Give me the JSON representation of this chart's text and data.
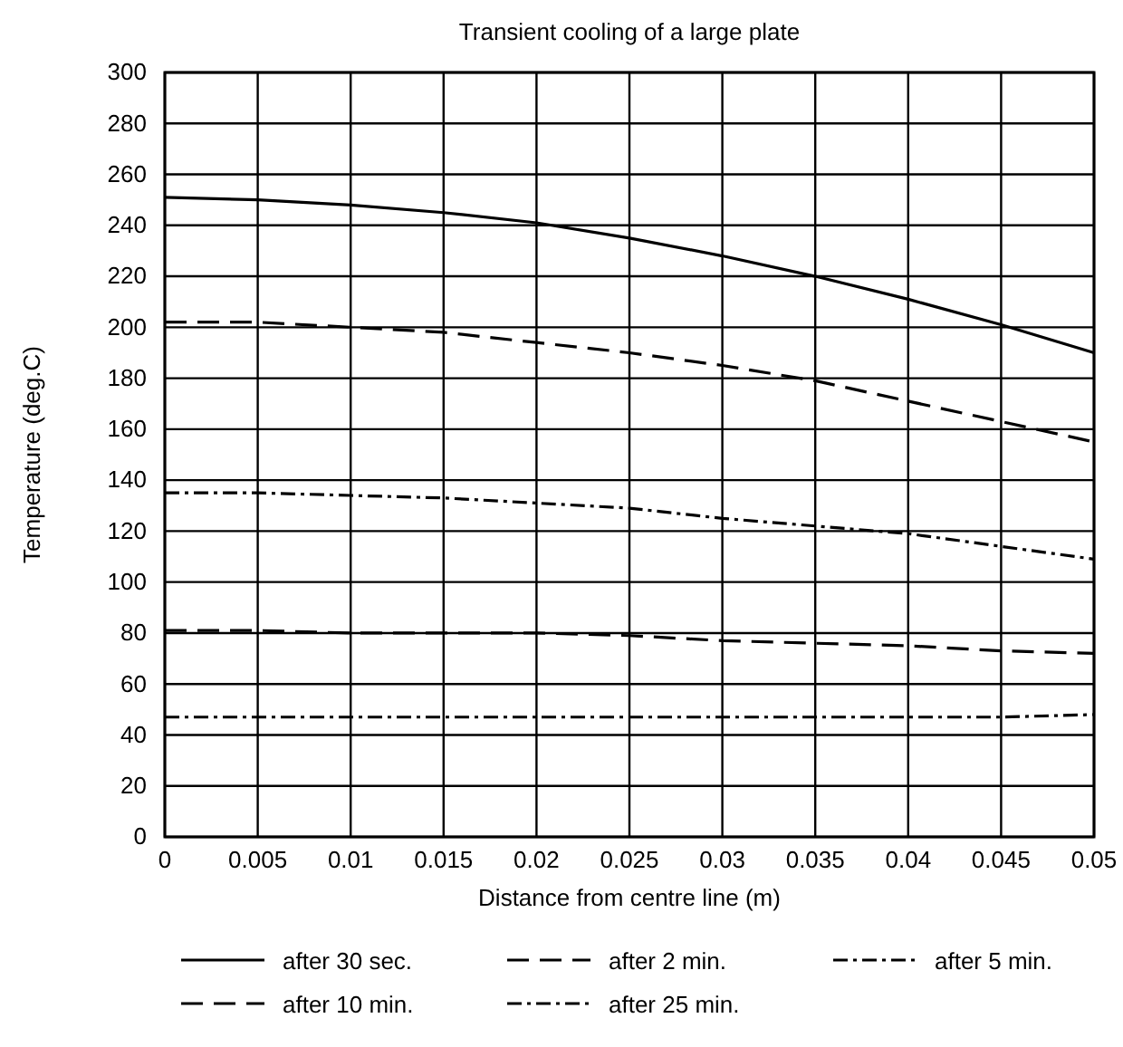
{
  "chart_data": {
    "type": "line",
    "title": "Transient cooling of a large plate",
    "xlabel": "Distance from centre line (m)",
    "ylabel": "Temperature (deg.C)",
    "x": [
      0,
      0.005,
      0.01,
      0.015,
      0.02,
      0.025,
      0.03,
      0.035,
      0.04,
      0.045,
      0.05
    ],
    "series": [
      {
        "name": "after 30 sec.",
        "color": "#000000",
        "line_style": "solid",
        "values": [
          251,
          250,
          248,
          245,
          241,
          235,
          228,
          220,
          211,
          201,
          190
        ]
      },
      {
        "name": "after 2 min.",
        "color": "#000000",
        "line_style": "dashed",
        "values": [
          202,
          202,
          200,
          198,
          194,
          190,
          185,
          179,
          171,
          163,
          155
        ]
      },
      {
        "name": "after 5 min.",
        "color": "#000000",
        "line_style": "dotted",
        "values": [
          135,
          135,
          134,
          133,
          131,
          129,
          125,
          122,
          119,
          114,
          109
        ]
      },
      {
        "name": "after 10 min.",
        "color": "#000000",
        "line_style": "dashed",
        "values": [
          81,
          81,
          80,
          80,
          80,
          79,
          77,
          76,
          75,
          73,
          72
        ]
      },
      {
        "name": "after 25 min.",
        "color": "#000000",
        "line_style": "dotted",
        "values": [
          47,
          47,
          47,
          47,
          47,
          47,
          47,
          47,
          47,
          47,
          48
        ]
      }
    ],
    "xlim": [
      0,
      0.05
    ],
    "xticks": [
      0,
      0.005,
      0.01,
      0.015,
      0.02,
      0.025,
      0.03,
      0.035,
      0.04,
      0.045,
      0.05
    ],
    "ylim": [
      0,
      300
    ],
    "yticks": [
      0,
      20,
      40,
      60,
      80,
      100,
      120,
      140,
      160,
      180,
      200,
      220,
      240,
      260,
      280,
      300
    ],
    "grid": true,
    "legend": "bottom",
    "marker": "none"
  }
}
